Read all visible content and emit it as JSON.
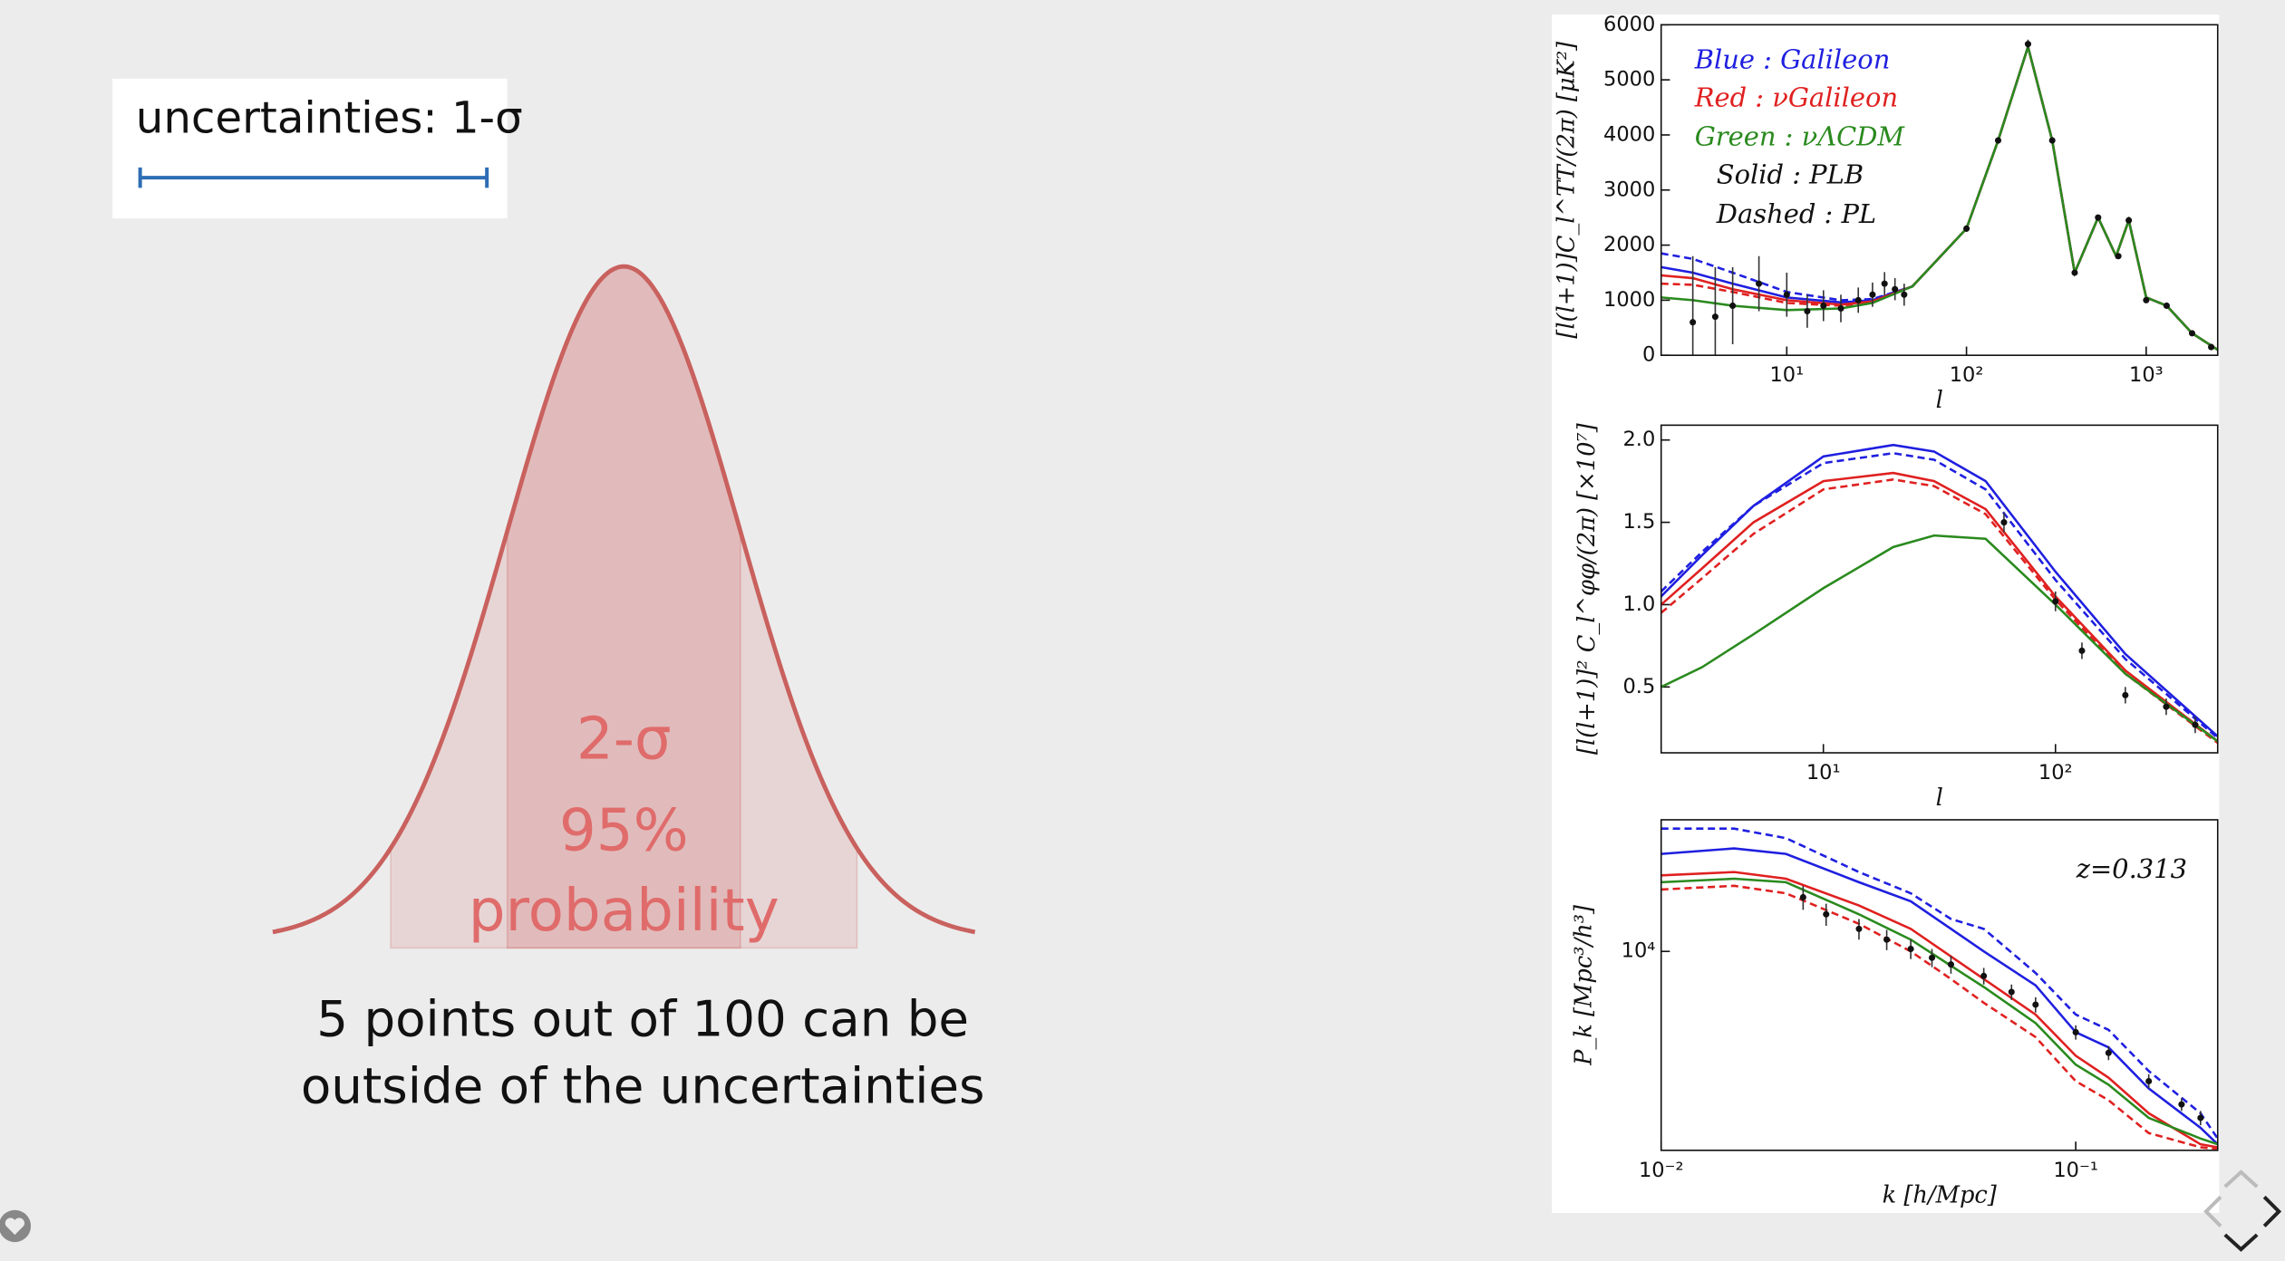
{
  "slide": {
    "legend_box": {
      "label": "uncertainties: 1-σ"
    },
    "gaussian": {
      "sigma_label": "2-σ",
      "percent": "95%",
      "probability": "probability"
    },
    "caption": [
      "5 points out of 100 can be",
      "outside of the uncertainties"
    ]
  },
  "chart_data": [
    {
      "type": "line",
      "xlabel": "l",
      "ylabel": "[l(l+1)]C_l^TT/(2π) [μK²]",
      "xscale": "log",
      "yscale": "linear",
      "xlim": [
        2,
        2500
      ],
      "ylim": [
        0,
        6000
      ],
      "xticks": [
        {
          "value": 10,
          "label": "10¹"
        },
        {
          "value": 100,
          "label": "10²"
        },
        {
          "value": 1000,
          "label": "10³"
        }
      ],
      "yticks": [
        0,
        1000,
        2000,
        3000,
        4000,
        5000,
        6000
      ],
      "annotations": [
        {
          "text": "Blue   : Galileon",
          "color": "#1f1fe0"
        },
        {
          "text": "Red    : νGalileon",
          "color": "#e02020"
        },
        {
          "text": "Green : νΛCDM",
          "color": "#2a8a1e"
        },
        {
          "text": "Solid    : PLB",
          "color": "#111111"
        },
        {
          "text": "Dashed : PL",
          "color": "#111111"
        }
      ],
      "x": [
        2,
        3,
        5,
        10,
        20,
        30,
        50,
        100,
        150,
        220,
        300,
        400,
        540,
        680,
        800,
        1000,
        1300,
        1800,
        2500
      ],
      "series": [
        {
          "color": "#1f1fe0",
          "dashed": true,
          "values": [
            1850,
            1750,
            1500,
            1150,
            1000,
            1020,
            1250,
            2300,
            3900,
            5600,
            3900,
            1500,
            2500,
            1800,
            2450,
            1050,
            900,
            400,
            100
          ]
        },
        {
          "color": "#1f1fe0",
          "dashed": false,
          "values": [
            1600,
            1500,
            1300,
            1050,
            960,
            1000,
            1250,
            2300,
            3900,
            5600,
            3900,
            1500,
            2500,
            1800,
            2450,
            1050,
            900,
            400,
            100
          ]
        },
        {
          "color": "#e02020",
          "dashed": false,
          "values": [
            1450,
            1400,
            1200,
            1000,
            920,
            980,
            1250,
            2300,
            3900,
            5600,
            3900,
            1500,
            2500,
            1800,
            2450,
            1050,
            900,
            400,
            100
          ]
        },
        {
          "color": "#e02020",
          "dashed": true,
          "values": [
            1300,
            1280,
            1150,
            950,
            900,
            970,
            1250,
            2300,
            3900,
            5600,
            3900,
            1500,
            2500,
            1800,
            2450,
            1050,
            900,
            400,
            100
          ]
        },
        {
          "color": "#2a8a1e",
          "dashed": false,
          "values": [
            1050,
            1000,
            900,
            820,
            850,
            950,
            1250,
            2300,
            3900,
            5600,
            3900,
            1500,
            2500,
            1800,
            2450,
            1050,
            900,
            400,
            100
          ]
        }
      ],
      "points": {
        "x": [
          3,
          4,
          5,
          7,
          10,
          13,
          16,
          20,
          25,
          30,
          35,
          40,
          45,
          100,
          150,
          220,
          300,
          400,
          540,
          700,
          800,
          1000,
          1300,
          1800,
          2300
        ],
        "values": [
          600,
          700,
          900,
          1300,
          1100,
          800,
          900,
          850,
          1000,
          1100,
          1300,
          1200,
          1100,
          2300,
          3900,
          5650,
          3900,
          1500,
          2500,
          1800,
          2450,
          1000,
          900,
          400,
          150
        ],
        "errors": [
          1200,
          900,
          700,
          500,
          400,
          300,
          280,
          250,
          230,
          220,
          210,
          200,
          200,
          60,
          60,
          80,
          60,
          50,
          50,
          40,
          40,
          30,
          30,
          20,
          20
        ]
      }
    },
    {
      "type": "line",
      "xlabel": "l",
      "ylabel": "[l(l+1)]² C_l^φφ/(2π) [×10⁷]",
      "xscale": "log",
      "yscale": "linear",
      "xlim": [
        2,
        500
      ],
      "ylim": [
        0.1,
        2.09
      ],
      "xticks": [
        {
          "value": 10,
          "label": "10¹"
        },
        {
          "value": 100,
          "label": "10²"
        }
      ],
      "yticks": [
        0.5,
        {
          "value": 1,
          "label": "1.0"
        },
        1.5,
        {
          "value": 2,
          "label": "2.0"
        }
      ],
      "annotations": [],
      "x": [
        2,
        3,
        5,
        10,
        20,
        30,
        50,
        100,
        200,
        500
      ],
      "series": [
        {
          "color": "#1f1fe0",
          "dashed": false,
          "values": [
            1.05,
            1.3,
            1.6,
            1.9,
            1.97,
            1.93,
            1.75,
            1.2,
            0.7,
            0.2
          ]
        },
        {
          "color": "#1f1fe0",
          "dashed": true,
          "values": [
            1.08,
            1.32,
            1.6,
            1.86,
            1.92,
            1.88,
            1.7,
            1.15,
            0.67,
            0.19
          ]
        },
        {
          "color": "#e02020",
          "dashed": false,
          "values": [
            1.0,
            1.22,
            1.5,
            1.75,
            1.8,
            1.75,
            1.58,
            1.05,
            0.6,
            0.17
          ]
        },
        {
          "color": "#e02020",
          "dashed": true,
          "values": [
            0.95,
            1.16,
            1.43,
            1.7,
            1.76,
            1.72,
            1.55,
            1.03,
            0.58,
            0.16
          ]
        },
        {
          "color": "#2a8a1e",
          "dashed": false,
          "values": [
            0.5,
            0.62,
            0.82,
            1.1,
            1.35,
            1.42,
            1.4,
            1.0,
            0.58,
            0.17
          ]
        }
      ],
      "points": {
        "x": [
          60,
          100,
          130,
          200,
          300,
          400
        ],
        "values": [
          1.5,
          1.02,
          0.72,
          0.45,
          0.38,
          0.27
        ],
        "errors": [
          0.06,
          0.06,
          0.05,
          0.05,
          0.05,
          0.05
        ]
      }
    },
    {
      "type": "line",
      "xlabel": "k [h/Mpc]",
      "ylabel": "P_k [Mpc³/h³]",
      "xscale": "log",
      "yscale": "log",
      "xlim": [
        0.01,
        0.22
      ],
      "ylim": [
        2000,
        29000
      ],
      "xticks": [
        {
          "value": 0.01,
          "label": "10⁻²"
        },
        {
          "value": 0.1,
          "label": "10⁻¹"
        }
      ],
      "yticks": [
        {
          "value": 10000,
          "label": "10⁴"
        }
      ],
      "annotations": [
        {
          "text": "z=0.313",
          "color": "#111111"
        }
      ],
      "x": [
        0.01,
        0.015,
        0.02,
        0.03,
        0.04,
        0.05,
        0.06,
        0.08,
        0.1,
        0.12,
        0.15,
        0.2,
        0.22
      ],
      "series": [
        {
          "color": "#1f1fe0",
          "dashed": true,
          "values": [
            27000,
            27000,
            25000,
            19000,
            16000,
            13000,
            12000,
            8400,
            6000,
            5300,
            3800,
            2700,
            2200
          ]
        },
        {
          "color": "#1f1fe0",
          "dashed": false,
          "values": [
            22000,
            23000,
            22000,
            17500,
            15000,
            12000,
            10000,
            7600,
            5200,
            4600,
            3300,
            2400,
            2100
          ]
        },
        {
          "color": "#e02020",
          "dashed": false,
          "values": [
            18500,
            19000,
            18000,
            14500,
            12000,
            9600,
            8000,
            6000,
            4300,
            3600,
            2700,
            2100,
            2050
          ]
        },
        {
          "color": "#e02020",
          "dashed": true,
          "values": [
            16500,
            17000,
            16000,
            12500,
            10000,
            8000,
            6600,
            5000,
            3500,
            3000,
            2300,
            2050,
            2020
          ]
        },
        {
          "color": "#2a8a1e",
          "dashed": false,
          "values": [
            17500,
            18000,
            17500,
            13500,
            11000,
            8900,
            7500,
            5600,
            4000,
            3400,
            2600,
            2200,
            2100
          ]
        }
      ],
      "points": {
        "x": [
          0.022,
          0.025,
          0.03,
          0.035,
          0.04,
          0.045,
          0.05,
          0.06,
          0.07,
          0.08,
          0.1,
          0.12,
          0.15,
          0.18,
          0.2
        ],
        "values": [
          15500,
          13500,
          12000,
          11000,
          10200,
          9500,
          9000,
          8200,
          7200,
          6500,
          5200,
          4400,
          3500,
          2900,
          2600
        ],
        "errors": [
          1500,
          1200,
          1000,
          900,
          800,
          700,
          650,
          550,
          450,
          400,
          300,
          250,
          200,
          150,
          150
        ]
      }
    }
  ]
}
